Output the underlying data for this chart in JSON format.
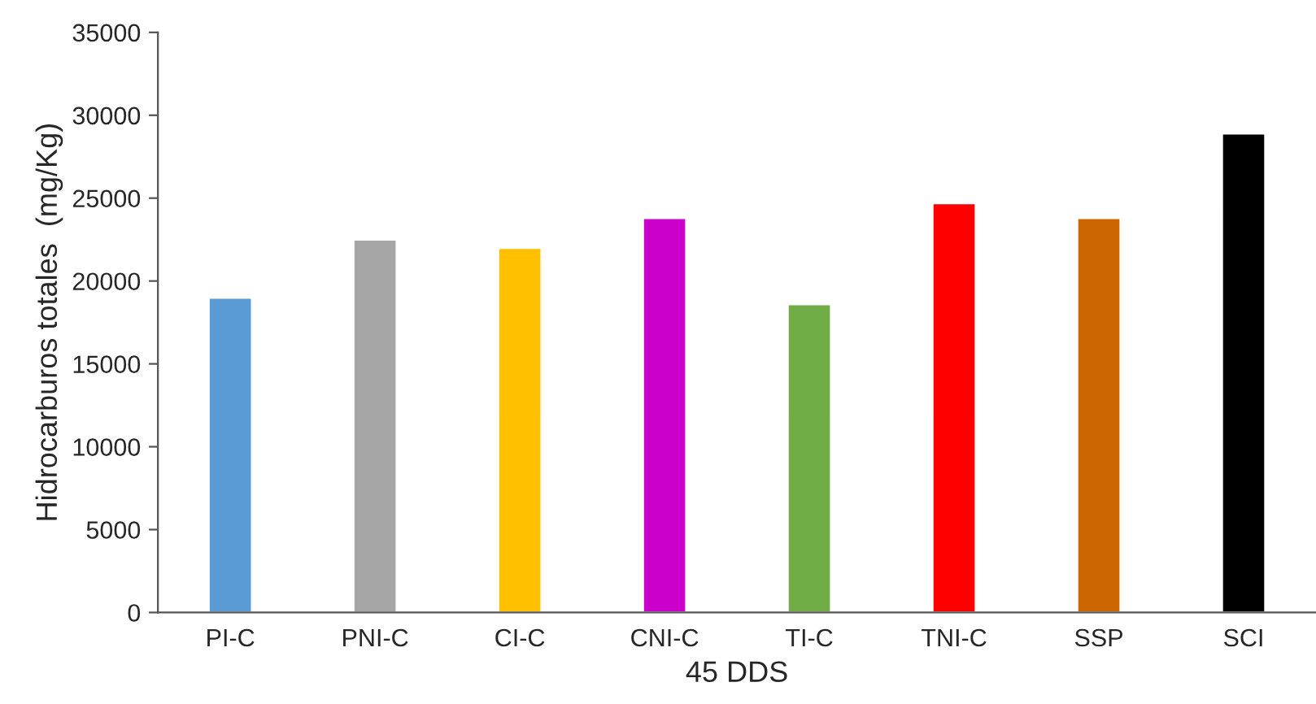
{
  "chart_data": {
    "type": "bar",
    "xlabel": "45 DDS",
    "ylabel": "Hidrocarburos totales  (mg/Kg)",
    "categories": [
      "PI-C",
      "PNI-C",
      "CI-C",
      "CNI-C",
      "TI-C",
      "TNI-C",
      "SSP",
      "SCI"
    ],
    "values": [
      19000,
      22500,
      22000,
      23800,
      18600,
      24700,
      23800,
      28900
    ],
    "colors": [
      "#5b9bd5",
      "#a5a5a5",
      "#ffc000",
      "#cc00cc",
      "#70ad47",
      "#ff0000",
      "#cc6600",
      "#000000"
    ],
    "ylim": [
      0,
      35000
    ],
    "yticks": [
      0,
      5000,
      10000,
      15000,
      20000,
      25000,
      30000,
      35000
    ],
    "grid": false,
    "legend": false
  }
}
